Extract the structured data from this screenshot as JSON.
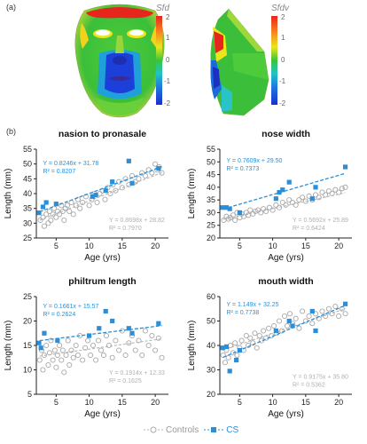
{
  "figure": {
    "panel_a_label": "(a)",
    "panel_b_label": "(b)",
    "colorbar_titles": [
      "Sfd",
      "Sfdv"
    ],
    "colorbar_ticks": [
      "2",
      "1",
      "0",
      "-1",
      "-2"
    ]
  },
  "legend": {
    "controls_label": "Controls",
    "cs_label": "CS"
  },
  "colors": {
    "controls": "#b5b5b5",
    "cs": "#2a8fd8"
  },
  "chart_data": [
    {
      "type": "scatter",
      "title": "nasion to pronasale",
      "xlabel": "Age (yrs)",
      "ylabel": "Length (mm)",
      "xlim": [
        2,
        22
      ],
      "ylim": [
        25,
        55
      ],
      "xticks": [
        5,
        10,
        15,
        20
      ],
      "yticks": [
        25,
        30,
        35,
        40,
        45,
        50,
        55
      ],
      "grid": false,
      "series": [
        {
          "name": "Controls",
          "marker": "open-circle",
          "fit": {
            "slope": 0.8698,
            "intercept": 28.82,
            "equation": "Y = 0.8698x + 28.82",
            "r2": "R² = 0.7970"
          },
          "points": [
            [
              2.6,
              31
            ],
            [
              3,
              32
            ],
            [
              3.2,
              29
            ],
            [
              3.5,
              33
            ],
            [
              3.8,
              30
            ],
            [
              4,
              34
            ],
            [
              4.2,
              31
            ],
            [
              4.5,
              33
            ],
            [
              4.7,
              35
            ],
            [
              5,
              32
            ],
            [
              5.2,
              34
            ],
            [
              5.5,
              33
            ],
            [
              5.8,
              36
            ],
            [
              6,
              34
            ],
            [
              6.2,
              31
            ],
            [
              6.4,
              35
            ],
            [
              6.7,
              36
            ],
            [
              7,
              34
            ],
            [
              7.3,
              37
            ],
            [
              7.6,
              33
            ],
            [
              8,
              36
            ],
            [
              8.3,
              38
            ],
            [
              8.6,
              35
            ],
            [
              9,
              37
            ],
            [
              9.5,
              39
            ],
            [
              10,
              36
            ],
            [
              10.4,
              38
            ],
            [
              10.8,
              40
            ],
            [
              11.2,
              37
            ],
            [
              11.6,
              40
            ],
            [
              12,
              41
            ],
            [
              12.4,
              38
            ],
            [
              12.8,
              42
            ],
            [
              13.2,
              40
            ],
            [
              13.6,
              43
            ],
            [
              14,
              41
            ],
            [
              14.5,
              44
            ],
            [
              15,
              42
            ],
            [
              15.5,
              45
            ],
            [
              16,
              43
            ],
            [
              16.5,
              46
            ],
            [
              17,
              44
            ],
            [
              17.5,
              45
            ],
            [
              18,
              47
            ],
            [
              18.5,
              46
            ],
            [
              19,
              48
            ],
            [
              19.5,
              47
            ],
            [
              20,
              50
            ],
            [
              20.3,
              48
            ],
            [
              20.6,
              49
            ],
            [
              21,
              47
            ]
          ]
        },
        {
          "name": "CS",
          "marker": "filled-square",
          "fit": {
            "slope": 0.8246,
            "intercept": 31.78,
            "equation": "Y = 0.8246x + 31.78",
            "r2": "R² = 0.8207"
          },
          "points": [
            [
              2.4,
              33.5
            ],
            [
              3,
              35.5
            ],
            [
              3.5,
              37
            ],
            [
              5,
              36.5
            ],
            [
              10.5,
              39
            ],
            [
              11,
              39.5
            ],
            [
              12.5,
              41
            ],
            [
              13.5,
              44
            ],
            [
              16,
              51
            ],
            [
              16.5,
              43.5
            ],
            [
              20.5,
              48.5
            ]
          ]
        }
      ]
    },
    {
      "type": "scatter",
      "title": "nose width",
      "xlabel": "Age (yrs)",
      "ylabel": "Length (mm)",
      "xlim": [
        2,
        22
      ],
      "ylim": [
        20,
        55
      ],
      "xticks": [
        5,
        10,
        15,
        20
      ],
      "yticks": [
        20,
        25,
        30,
        35,
        40,
        45,
        50,
        55
      ],
      "grid": false,
      "series": [
        {
          "name": "Controls",
          "marker": "open-circle",
          "fit": {
            "slope": 0.5692,
            "intercept": 25.89,
            "equation": "Y = 0.5692x + 25.89",
            "r2": "R² = 0.6424"
          },
          "points": [
            [
              2.6,
              27
            ],
            [
              3,
              28.5
            ],
            [
              3.3,
              27.5
            ],
            [
              3.6,
              28
            ],
            [
              4,
              29
            ],
            [
              4.3,
              27
            ],
            [
              4.6,
              30
            ],
            [
              5,
              28
            ],
            [
              5.3,
              29.5
            ],
            [
              5.6,
              28.5
            ],
            [
              6,
              30
            ],
            [
              6.3,
              29
            ],
            [
              6.6,
              31
            ],
            [
              7,
              29.5
            ],
            [
              7.4,
              30.5
            ],
            [
              7.8,
              31
            ],
            [
              8.2,
              30
            ],
            [
              8.6,
              31.5
            ],
            [
              9,
              30.5
            ],
            [
              9.5,
              32
            ],
            [
              10,
              31
            ],
            [
              10.5,
              33
            ],
            [
              11,
              32
            ],
            [
              11.5,
              34
            ],
            [
              12,
              33
            ],
            [
              12.5,
              35
            ],
            [
              13,
              34
            ],
            [
              13.5,
              33
            ],
            [
              14,
              35
            ],
            [
              14.5,
              36
            ],
            [
              15,
              34.5
            ],
            [
              15.5,
              36.5
            ],
            [
              16,
              35
            ],
            [
              16.5,
              37
            ],
            [
              17,
              36
            ],
            [
              17.5,
              38
            ],
            [
              18,
              37
            ],
            [
              18.5,
              38.5
            ],
            [
              19,
              37.5
            ],
            [
              19.5,
              39
            ],
            [
              20,
              38
            ],
            [
              20.5,
              39.5
            ],
            [
              21,
              40
            ]
          ]
        },
        {
          "name": "CS",
          "marker": "filled-square",
          "fit": {
            "slope": 0.7609,
            "intercept": 29.5,
            "equation": "Y = 0.7609x + 29.50",
            "r2": "R² = 0.7373"
          },
          "points": [
            [
              2.4,
              32
            ],
            [
              3,
              32
            ],
            [
              3.5,
              31.5
            ],
            [
              5,
              30
            ],
            [
              10.5,
              35.5
            ],
            [
              11,
              38
            ],
            [
              11.5,
              39
            ],
            [
              12.5,
              42
            ],
            [
              16,
              35.5
            ],
            [
              16.5,
              40
            ],
            [
              21,
              48
            ]
          ]
        }
      ]
    },
    {
      "type": "scatter",
      "title": "philtrum length",
      "xlabel": "Age (yrs)",
      "ylabel": "Length (mm)",
      "xlim": [
        2,
        22
      ],
      "ylim": [
        5,
        25
      ],
      "xticks": [
        5,
        10,
        15,
        20
      ],
      "yticks": [
        5,
        10,
        15,
        20,
        25
      ],
      "grid": false,
      "series": [
        {
          "name": "Controls",
          "marker": "open-circle",
          "fit": {
            "slope": 0.1914,
            "intercept": 12.33,
            "equation": "Y = 0.1914x + 12.33",
            "r2": "R² = 0.1625"
          },
          "points": [
            [
              2.5,
              12
            ],
            [
              2.8,
              14
            ],
            [
              3,
              10
            ],
            [
              3.2,
              13
            ],
            [
              3.5,
              15
            ],
            [
              3.8,
              11
            ],
            [
              4,
              13.5
            ],
            [
              4.2,
              16
            ],
            [
              4.5,
              12
            ],
            [
              4.8,
              14
            ],
            [
              5,
              10.5
            ],
            [
              5.2,
              13
            ],
            [
              5.5,
              15
            ],
            [
              5.8,
              12
            ],
            [
              6,
              14
            ],
            [
              6.2,
              9.5
            ],
            [
              6.5,
              13
            ],
            [
              6.8,
              16
            ],
            [
              7,
              11
            ],
            [
              7.3,
              14
            ],
            [
              7.6,
              12.5
            ],
            [
              8,
              15
            ],
            [
              8.3,
              13
            ],
            [
              8.6,
              17
            ],
            [
              9,
              12
            ],
            [
              9.4,
              14.5
            ],
            [
              9.8,
              16
            ],
            [
              10.2,
              13
            ],
            [
              10.6,
              15
            ],
            [
              11,
              12
            ],
            [
              11.4,
              16
            ],
            [
              11.8,
              14
            ],
            [
              12.2,
              13
            ],
            [
              12.6,
              17
            ],
            [
              13,
              15
            ],
            [
              13.5,
              12.5
            ],
            [
              14,
              16
            ],
            [
              14.5,
              14
            ],
            [
              15,
              18
            ],
            [
              15.5,
              13
            ],
            [
              16,
              15.5
            ],
            [
              16.5,
              17
            ],
            [
              17,
              14
            ],
            [
              17.5,
              16
            ],
            [
              18,
              13
            ],
            [
              18.5,
              18
            ],
            [
              19,
              15
            ],
            [
              19.5,
              17
            ],
            [
              20,
              14
            ],
            [
              20.5,
              16.5
            ],
            [
              21,
              12.5
            ]
          ]
        },
        {
          "name": "CS",
          "marker": "filled-square",
          "fit": {
            "slope": 0.1661,
            "intercept": 15.57,
            "equation": "Y = 0.1661x + 15.57",
            "r2": "R² = 0.2624"
          },
          "points": [
            [
              2.4,
              15.5
            ],
            [
              2.7,
              14.5
            ],
            [
              3.2,
              17.5
            ],
            [
              5.2,
              16
            ],
            [
              10,
              17
            ],
            [
              11.5,
              18.5
            ],
            [
              12.5,
              22
            ],
            [
              13.5,
              20
            ],
            [
              16,
              18.5
            ],
            [
              16.5,
              17.5
            ],
            [
              20.5,
              19.5
            ]
          ]
        }
      ]
    },
    {
      "type": "scatter",
      "title": "mouth width",
      "xlabel": "Age (yrs)",
      "ylabel": "Length (mm)",
      "xlim": [
        2,
        22
      ],
      "ylim": [
        20,
        60
      ],
      "xticks": [
        5,
        10,
        15,
        20
      ],
      "yticks": [
        20,
        30,
        40,
        50,
        60
      ],
      "grid": false,
      "series": [
        {
          "name": "Controls",
          "marker": "open-circle",
          "fit": {
            "slope": 0.9175,
            "intercept": 35.8,
            "equation": "Y = 0.9175x + 35.80",
            "r2": "R² = 0.5362"
          },
          "points": [
            [
              2.5,
              36
            ],
            [
              2.8,
              33
            ],
            [
              3,
              38
            ],
            [
              3.3,
              35
            ],
            [
              3.6,
              40
            ],
            [
              4,
              37
            ],
            [
              4.3,
              41
            ],
            [
              4.6,
              36
            ],
            [
              5,
              39
            ],
            [
              5.3,
              42
            ],
            [
              5.6,
              38
            ],
            [
              6,
              44
            ],
            [
              6.3,
              40
            ],
            [
              6.6,
              43
            ],
            [
              7,
              41
            ],
            [
              7.3,
              45
            ],
            [
              7.6,
              39
            ],
            [
              8,
              44
            ],
            [
              8.3,
              42
            ],
            [
              8.6,
              46
            ],
            [
              9,
              43
            ],
            [
              9.4,
              47
            ],
            [
              9.8,
              44
            ],
            [
              10.2,
              48
            ],
            [
              10.6,
              45
            ],
            [
              11,
              50
            ],
            [
              11.4,
              46
            ],
            [
              11.8,
              52
            ],
            [
              12.2,
              48
            ],
            [
              12.6,
              53
            ],
            [
              13,
              49
            ],
            [
              13.5,
              51
            ],
            [
              14,
              47
            ],
            [
              14.5,
              54
            ],
            [
              15,
              50
            ],
            [
              15.5,
              52
            ],
            [
              16,
              49
            ],
            [
              16.5,
              53
            ],
            [
              17,
              51
            ],
            [
              17.5,
              54
            ],
            [
              18,
              52
            ],
            [
              18.5,
              55
            ],
            [
              19,
              53
            ],
            [
              19.5,
              56
            ],
            [
              20,
              52
            ],
            [
              20.5,
              55
            ],
            [
              21,
              53
            ]
          ]
        },
        {
          "name": "CS",
          "marker": "filled-square",
          "fit": {
            "slope": 1.149,
            "intercept": 32.25,
            "equation": "Y = 1.149x + 32.25",
            "r2": "R² = 0.7738"
          },
          "points": [
            [
              2.4,
              39
            ],
            [
              3,
              39.5
            ],
            [
              3.5,
              29.5
            ],
            [
              4.5,
              34
            ],
            [
              5,
              38
            ],
            [
              10.5,
              46
            ],
            [
              12.5,
              50
            ],
            [
              13,
              48
            ],
            [
              16,
              54
            ],
            [
              16.5,
              46
            ],
            [
              21,
              57
            ]
          ]
        }
      ]
    }
  ]
}
